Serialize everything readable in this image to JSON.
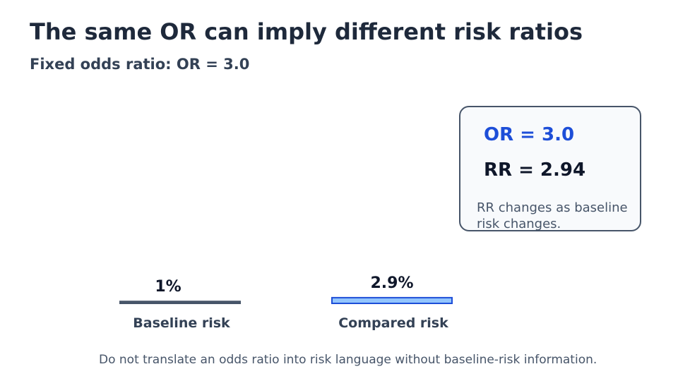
{
  "title": "The same OR can imply different risk ratios",
  "subtitle": "Fixed odds ratio: OR = 3.0",
  "callout": {
    "or_text": "OR = 3.0",
    "rr_text": "RR = 2.94",
    "note": "RR changes as baseline risk changes."
  },
  "footnote": "Do not translate an odds ratio into risk language without baseline-risk information.",
  "chart_data": {
    "type": "bar",
    "categories": [
      "Baseline risk",
      "Compared risk"
    ],
    "values": [
      1,
      2.9
    ],
    "data_labels": [
      "1%",
      "2.9%"
    ],
    "title": "",
    "xlabel": "",
    "ylabel": "",
    "unit": "%",
    "ylim": [
      0,
      100
    ],
    "grid": false,
    "colors": {
      "baseline_fill": "#475569",
      "baseline_stroke": "#475569",
      "compared_fill": "#93c5fd",
      "compared_stroke": "#1d4ed8",
      "label": "#0f172a",
      "category": "#334155"
    }
  }
}
